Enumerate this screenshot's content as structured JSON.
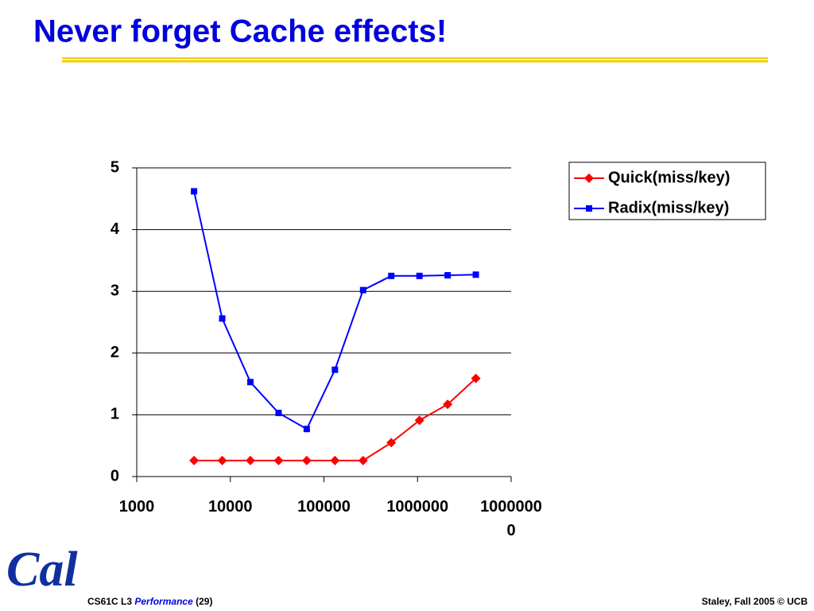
{
  "title": "Never forget Cache effects!",
  "chart_data": {
    "type": "line",
    "x": [
      4096,
      8192,
      16384,
      32768,
      65536,
      131072,
      262144,
      524288,
      1048576,
      2097152,
      4194304
    ],
    "xlim": [
      1000,
      10000000
    ],
    "xticks": [
      1000,
      10000,
      100000,
      1000000,
      10000000
    ],
    "xscale": "log",
    "ylim": [
      0,
      5
    ],
    "yticks": [
      0,
      1,
      2,
      3,
      4,
      5
    ],
    "grid": true,
    "legend": "right",
    "series": [
      {
        "name": "Quick(miss/key)",
        "color": "#ff0000",
        "marker": "diamond",
        "values": [
          0.26,
          0.26,
          0.26,
          0.26,
          0.26,
          0.26,
          0.26,
          0.55,
          0.91,
          1.17,
          1.59
        ]
      },
      {
        "name": "Radix(miss/key)",
        "color": "#0000ff",
        "marker": "square",
        "values": [
          4.62,
          2.56,
          1.53,
          1.03,
          0.77,
          1.73,
          3.02,
          3.25,
          3.25,
          3.26,
          3.27
        ]
      }
    ]
  },
  "footer": {
    "logo": "Cal",
    "course": "CS61C L3",
    "topic": "Performance",
    "page": "(29)",
    "credit": "Staley, Fall 2005 © UCB"
  }
}
